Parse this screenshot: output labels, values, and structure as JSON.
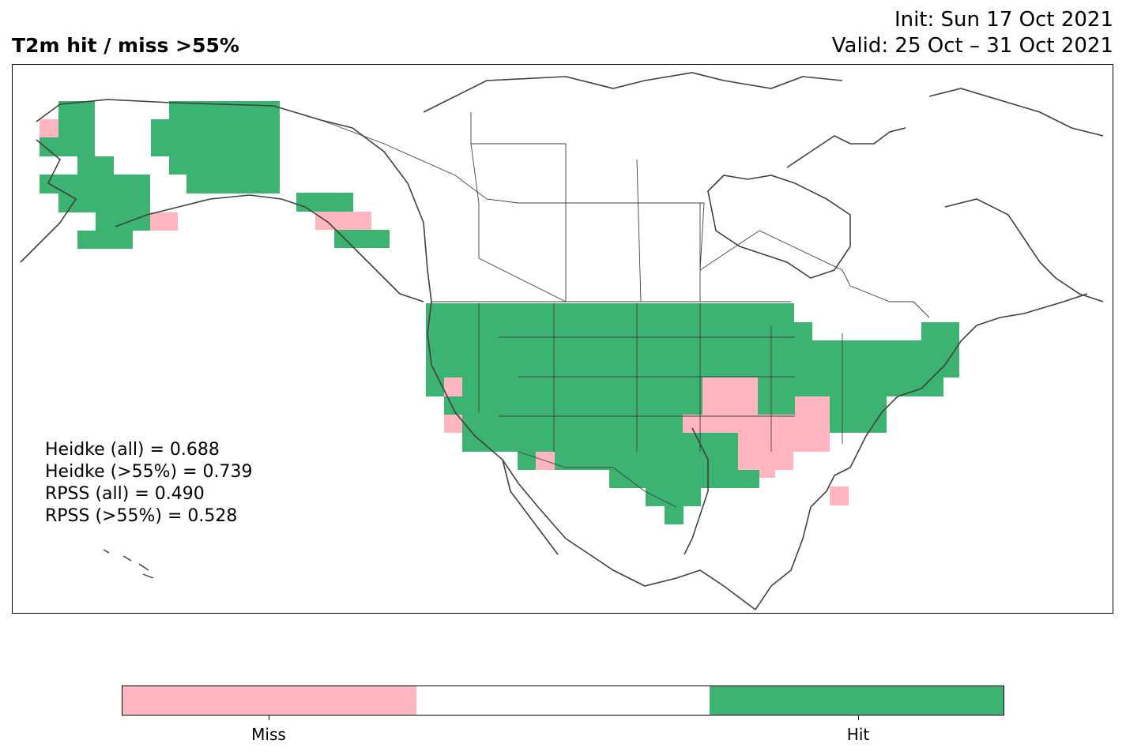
{
  "title": "T2m hit / miss  >55%",
  "init": "Init: Sun 17 Oct 2021",
  "valid": "Valid: 25 Oct – 31 Oct 2021",
  "stats": [
    "Heidke (all) = 0.688",
    "Heidke (>55%) = 0.739",
    "RPSS (all) = 0.490",
    "RPSS (>55%) = 0.528"
  ],
  "colors": {
    "hit": "#3cb371",
    "miss": "#ffb6c1",
    "neutral": "#ffffff",
    "coast": "#404040"
  },
  "legend": {
    "miss_label": "Miss",
    "hit_label": "Hit"
  }
}
